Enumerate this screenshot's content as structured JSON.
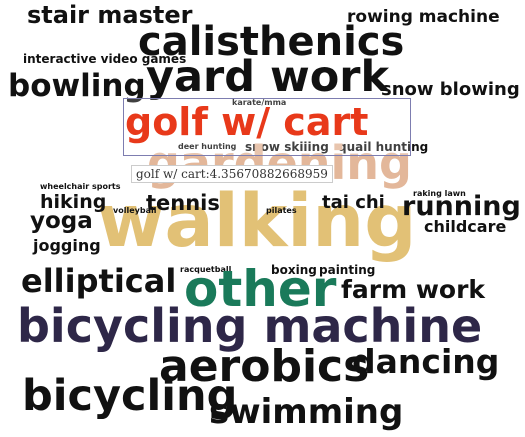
{
  "chart_data": {
    "type": "wordcloud",
    "highlight": {
      "word": "golf w/ cart",
      "tooltip": "golf w/ cart:4.35670882668959"
    },
    "words": [
      {
        "text": "stair master",
        "color": "#111111"
      },
      {
        "text": "rowing machine",
        "color": "#111111"
      },
      {
        "text": "calisthenics",
        "color": "#111111"
      },
      {
        "text": "interactive video games",
        "color": "#111111"
      },
      {
        "text": "bowling",
        "color": "#111111"
      },
      {
        "text": "yard work",
        "color": "#111111"
      },
      {
        "text": "snow blowing",
        "color": "#111111"
      },
      {
        "text": "karate/mma",
        "color": "#111111"
      },
      {
        "text": "golf w/ cart",
        "color": "#e8391a"
      },
      {
        "text": "deer hunting",
        "color": "#111111"
      },
      {
        "text": "snow skiiing",
        "color": "#111111"
      },
      {
        "text": "quail hunting",
        "color": "#111111"
      },
      {
        "text": "gardening",
        "color": "#e3b79a"
      },
      {
        "text": "wheelchair sports",
        "color": "#111111"
      },
      {
        "text": "raking lawn",
        "color": "#111111"
      },
      {
        "text": "hiking",
        "color": "#111111"
      },
      {
        "text": "tennis",
        "color": "#111111"
      },
      {
        "text": "tai chi",
        "color": "#111111"
      },
      {
        "text": "running",
        "color": "#111111"
      },
      {
        "text": "volleyball",
        "color": "#111111"
      },
      {
        "text": "pilates",
        "color": "#111111"
      },
      {
        "text": "yoga",
        "color": "#111111"
      },
      {
        "text": "walking",
        "color": "#e2c176"
      },
      {
        "text": "childcare",
        "color": "#111111"
      },
      {
        "text": "jogging",
        "color": "#111111"
      },
      {
        "text": "racquetball",
        "color": "#111111"
      },
      {
        "text": "boxing",
        "color": "#111111"
      },
      {
        "text": "painting",
        "color": "#111111"
      },
      {
        "text": "elliptical",
        "color": "#111111"
      },
      {
        "text": "other",
        "color": "#1a7a5a"
      },
      {
        "text": "farm work",
        "color": "#111111"
      },
      {
        "text": "bicycling machine",
        "color": "#2e2748"
      },
      {
        "text": "dancing",
        "color": "#111111"
      },
      {
        "text": "aerobics",
        "color": "#111111"
      },
      {
        "text": "bicycling",
        "color": "#111111"
      },
      {
        "text": "swimming",
        "color": "#111111"
      }
    ]
  }
}
